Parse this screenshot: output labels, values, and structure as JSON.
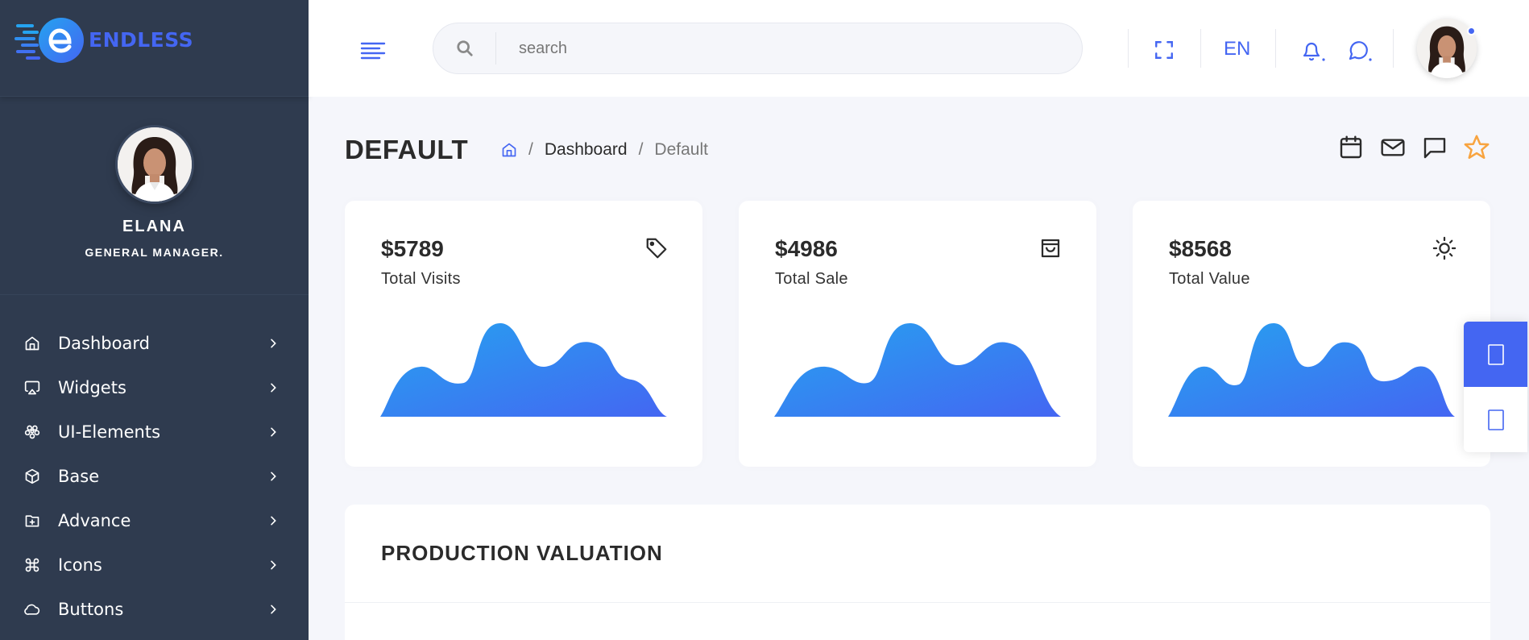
{
  "brand": {
    "name": "ENDLESS",
    "accent": "#4466f2"
  },
  "profile": {
    "name": "ELANA",
    "role": "GENERAL MANAGER."
  },
  "sidebar": {
    "items": [
      {
        "label": "Dashboard",
        "icon": "home-icon"
      },
      {
        "label": "Widgets",
        "icon": "airplay-icon"
      },
      {
        "label": "UI-Elements",
        "icon": "box-icon"
      },
      {
        "label": "Base",
        "icon": "cube-icon"
      },
      {
        "label": "Advance",
        "icon": "folder-plus-icon"
      },
      {
        "label": "Icons",
        "icon": "command-icon"
      },
      {
        "label": "Buttons",
        "icon": "cloud-icon"
      }
    ]
  },
  "header": {
    "search": {
      "placeholder": "search"
    },
    "language": "EN"
  },
  "page": {
    "title": "DEFAULT",
    "breadcrumb": [
      "Dashboard",
      "Default"
    ]
  },
  "stats": [
    {
      "value": "$5789",
      "label": "Total Visits",
      "icon": "tag-icon"
    },
    {
      "value": "$4986",
      "label": "Total Sale",
      "icon": "shopping-bag-icon"
    },
    {
      "value": "$8568",
      "label": "Total Value",
      "icon": "sun-icon"
    }
  ],
  "production": {
    "title": "PRODUCTION VALUATION"
  }
}
